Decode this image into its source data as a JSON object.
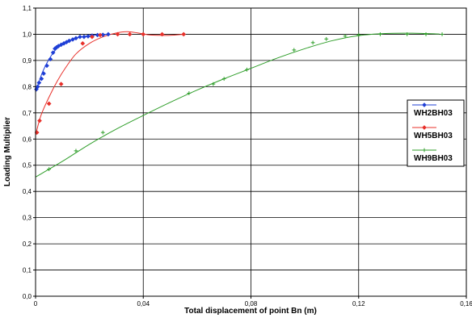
{
  "chart_data": {
    "type": "scatter",
    "xlabel": "Total displacement of point Bn (m)",
    "ylabel": "Loading Multiplier",
    "xlim": [
      0,
      0.16
    ],
    "ylim": [
      0,
      1.1
    ],
    "x_ticks": [
      "0",
      "0,04",
      "0,08",
      "0,12",
      "0,16"
    ],
    "y_ticks": [
      "0,0",
      "0,1",
      "0,2",
      "0,3",
      "0,4",
      "0,5",
      "0,6",
      "0,7",
      "0,8",
      "0,9",
      "1,0",
      "1,1"
    ],
    "grid": true,
    "legend_position": "right",
    "series": [
      {
        "name": "WH2BH03",
        "color": "#1f3fd6",
        "marker": "diamond",
        "points": [
          [
            0.0003,
            0.79
          ],
          [
            0.0008,
            0.8
          ],
          [
            0.0013,
            0.815
          ],
          [
            0.0022,
            0.83
          ],
          [
            0.003,
            0.85
          ],
          [
            0.0042,
            0.88
          ],
          [
            0.0055,
            0.905
          ],
          [
            0.0065,
            0.93
          ],
          [
            0.0072,
            0.945
          ],
          [
            0.0078,
            0.95
          ],
          [
            0.0085,
            0.955
          ],
          [
            0.0095,
            0.96
          ],
          [
            0.0105,
            0.965
          ],
          [
            0.0115,
            0.97
          ],
          [
            0.0125,
            0.975
          ],
          [
            0.0138,
            0.98
          ],
          [
            0.015,
            0.985
          ],
          [
            0.0165,
            0.99
          ],
          [
            0.018,
            0.99
          ],
          [
            0.0195,
            0.992
          ],
          [
            0.021,
            0.995
          ],
          [
            0.023,
            0.997
          ],
          [
            0.025,
            0.998
          ],
          [
            0.027,
            1.0
          ]
        ],
        "curve": [
          [
            0.0,
            0.78
          ],
          [
            0.001,
            0.81
          ],
          [
            0.002,
            0.84
          ],
          [
            0.003,
            0.865
          ],
          [
            0.005,
            0.905
          ],
          [
            0.007,
            0.935
          ],
          [
            0.009,
            0.955
          ],
          [
            0.012,
            0.972
          ],
          [
            0.015,
            0.985
          ],
          [
            0.018,
            0.992
          ],
          [
            0.022,
            0.997
          ],
          [
            0.027,
            1.0
          ]
        ]
      },
      {
        "name": "WH5BH03",
        "color": "#e8302a",
        "marker": "diamond",
        "points": [
          [
            0.0005,
            0.625
          ],
          [
            0.0015,
            0.67
          ],
          [
            0.005,
            0.735
          ],
          [
            0.0095,
            0.81
          ],
          [
            0.0175,
            0.965
          ],
          [
            0.021,
            0.99
          ],
          [
            0.024,
            0.997
          ],
          [
            0.0305,
            1.0
          ],
          [
            0.035,
            1.0
          ],
          [
            0.04,
            1.0
          ],
          [
            0.047,
            1.0
          ],
          [
            0.055,
            1.0
          ]
        ],
        "curve": [
          [
            0.0,
            0.615
          ],
          [
            0.002,
            0.69
          ],
          [
            0.005,
            0.76
          ],
          [
            0.008,
            0.82
          ],
          [
            0.011,
            0.87
          ],
          [
            0.015,
            0.925
          ],
          [
            0.02,
            0.965
          ],
          [
            0.025,
            0.99
          ],
          [
            0.03,
            1.005
          ],
          [
            0.034,
            1.01
          ],
          [
            0.038,
            1.005
          ],
          [
            0.042,
            0.998
          ],
          [
            0.046,
            0.996
          ],
          [
            0.05,
            0.996
          ],
          [
            0.055,
            1.0
          ]
        ]
      },
      {
        "name": "WH9BH03",
        "color": "#2f9e2a",
        "marker": "plus",
        "points": [
          [
            0.005,
            0.485
          ],
          [
            0.015,
            0.555
          ],
          [
            0.025,
            0.625
          ],
          [
            0.057,
            0.775
          ],
          [
            0.066,
            0.81
          ],
          [
            0.07,
            0.83
          ],
          [
            0.0785,
            0.865
          ],
          [
            0.096,
            0.94
          ],
          [
            0.103,
            0.968
          ],
          [
            0.108,
            0.982
          ],
          [
            0.115,
            0.993
          ],
          [
            0.12,
            0.998
          ],
          [
            0.128,
            1.0
          ],
          [
            0.138,
            1.0
          ],
          [
            0.145,
            1.0
          ],
          [
            0.151,
            1.0
          ]
        ],
        "curve": [
          [
            0.0,
            0.455
          ],
          [
            0.01,
            0.515
          ],
          [
            0.02,
            0.58
          ],
          [
            0.03,
            0.638
          ],
          [
            0.04,
            0.69
          ],
          [
            0.05,
            0.74
          ],
          [
            0.06,
            0.787
          ],
          [
            0.07,
            0.83
          ],
          [
            0.08,
            0.87
          ],
          [
            0.09,
            0.91
          ],
          [
            0.1,
            0.945
          ],
          [
            0.11,
            0.975
          ],
          [
            0.12,
            0.995
          ],
          [
            0.13,
            1.003
          ],
          [
            0.14,
            1.004
          ],
          [
            0.15,
            1.001
          ]
        ]
      }
    ]
  }
}
